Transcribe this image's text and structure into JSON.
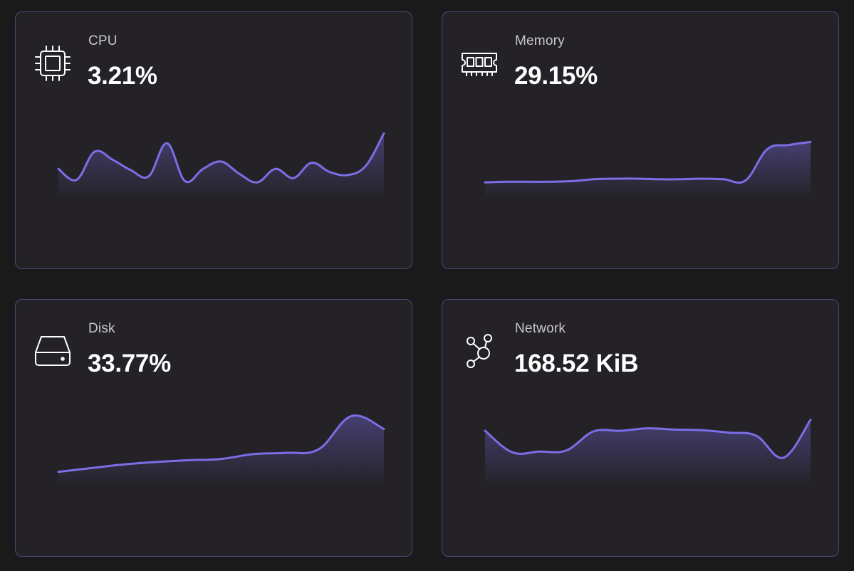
{
  "colors": {
    "accent": "#7b6ee6",
    "card_bg": "#242227",
    "card_border": "#4d4873",
    "page_bg": "#1b1a1b"
  },
  "cards": [
    {
      "label": "CPU",
      "value": "3.21%",
      "icon": "cpu-chip-icon",
      "trend": [
        0.3,
        0.12,
        0.58,
        0.45,
        0.28,
        0.18,
        0.72,
        0.1,
        0.3,
        0.42,
        0.22,
        0.08,
        0.3,
        0.15,
        0.4,
        0.25,
        0.2,
        0.35,
        0.88
      ]
    },
    {
      "label": "Memory",
      "value": "29.15%",
      "icon": "memory-module-icon",
      "trend": [
        0.08,
        0.09,
        0.09,
        0.09,
        0.1,
        0.13,
        0.14,
        0.14,
        0.13,
        0.13,
        0.14,
        0.13,
        0.11,
        0.62,
        0.69,
        0.74
      ]
    },
    {
      "label": "Disk",
      "value": "33.77%",
      "icon": "hard-drive-icon",
      "trend": [
        0.05,
        0.11,
        0.17,
        0.21,
        0.24,
        0.26,
        0.34,
        0.36,
        0.42,
        0.96,
        0.75
      ]
    },
    {
      "label": "Network",
      "value": "168.52 KiB",
      "icon": "network-nodes-icon",
      "trend": [
        0.72,
        0.37,
        0.38,
        0.4,
        0.71,
        0.72,
        0.76,
        0.74,
        0.73,
        0.69,
        0.64,
        0.28,
        0.9
      ]
    }
  ]
}
